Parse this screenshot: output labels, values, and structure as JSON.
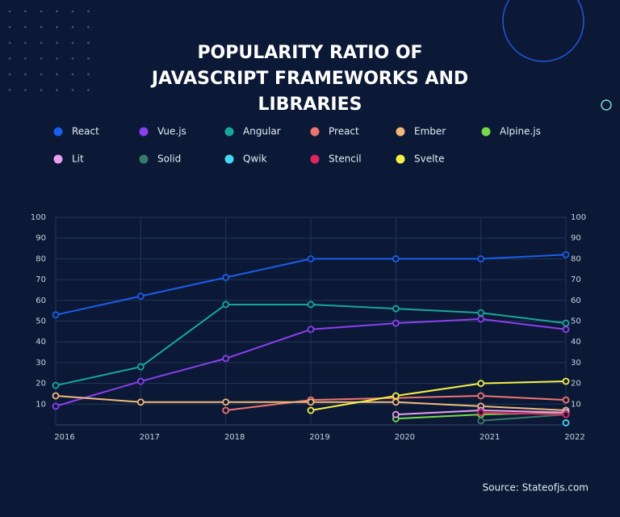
{
  "chart_data": {
    "type": "line",
    "title": "POPULARITY RATIO OF JAVASCRIPT FRAMEWORKS AND LIBRARIES",
    "categories": [
      "2016",
      "2017",
      "2018",
      "2019",
      "2020",
      "2021",
      "2022"
    ],
    "series": [
      {
        "name": "React",
        "color": "#1a5de8",
        "values": [
          53,
          62,
          71,
          80,
          80,
          80,
          82
        ]
      },
      {
        "name": "Vue.js",
        "color": "#8c3ff0",
        "values": [
          9,
          21,
          32,
          46,
          49,
          51,
          46
        ]
      },
      {
        "name": "Angular",
        "color": "#17a79a",
        "values": [
          19,
          28,
          58,
          58,
          56,
          54,
          49
        ]
      },
      {
        "name": "Preact",
        "color": "#f07470",
        "values": [
          null,
          null,
          7,
          12,
          13,
          14,
          12
        ]
      },
      {
        "name": "Ember",
        "color": "#f2b97a",
        "values": [
          14,
          11,
          11,
          11,
          11,
          9,
          7
        ]
      },
      {
        "name": "Alpine.js",
        "color": "#7ad94a",
        "values": [
          null,
          null,
          null,
          null,
          3,
          5,
          6
        ]
      },
      {
        "name": "Lit",
        "color": "#e9a0f0",
        "values": [
          null,
          null,
          null,
          null,
          5,
          7,
          6
        ]
      },
      {
        "name": "Solid",
        "color": "#3a7a6a",
        "values": [
          null,
          null,
          null,
          null,
          null,
          2,
          5
        ]
      },
      {
        "name": "Qwik",
        "color": "#45d6f0",
        "values": [
          null,
          null,
          null,
          null,
          null,
          null,
          1
        ]
      },
      {
        "name": "Stencil",
        "color": "#e0245e",
        "values": [
          null,
          null,
          null,
          null,
          null,
          6,
          5
        ]
      },
      {
        "name": "Svelte",
        "color": "#f5f045",
        "values": [
          null,
          null,
          null,
          7,
          14,
          20,
          21
        ]
      }
    ],
    "ylim": [
      0,
      100
    ],
    "yticks": [
      10,
      20,
      30,
      40,
      50,
      60,
      70,
      80,
      90,
      100
    ],
    "grid": true,
    "source": "Source: Stateofjs.com"
  }
}
